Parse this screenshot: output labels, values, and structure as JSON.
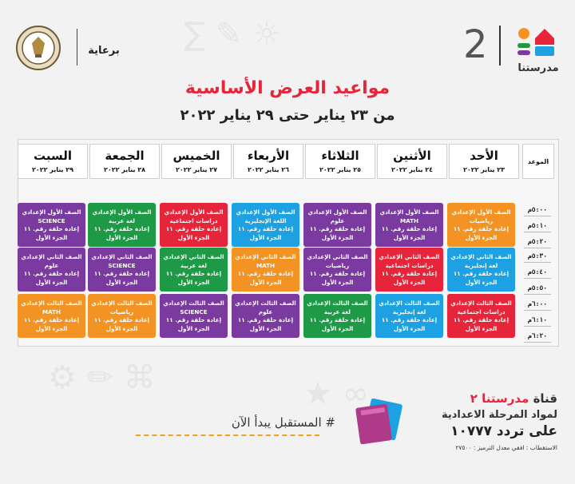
{
  "sponsor_label": "برعاية",
  "brand": {
    "number": "2",
    "name": "مدرستنا"
  },
  "title": "مواعيد العرض الأساسية",
  "subtitle": "من ٢٣ يناير حتى ٢٩ يناير ٢٠٢٢",
  "time_header": "الموعد",
  "days": [
    {
      "name": "الأحد",
      "date": "٢٣ يناير ٢٠٢٢"
    },
    {
      "name": "الأثنين",
      "date": "٢٤ يناير ٢٠٢٢"
    },
    {
      "name": "الثلاثاء",
      "date": "٢٥ يناير ٢٠٢٢"
    },
    {
      "name": "الأربعاء",
      "date": "٢٦ يناير ٢٠٢٢"
    },
    {
      "name": "الخميس",
      "date": "٢٧ يناير ٢٠٢٢"
    },
    {
      "name": "الجمعة",
      "date": "٢٨ يناير ٢٠٢٢"
    },
    {
      "name": "السبت",
      "date": "٢٩ يناير ٢٠٢٢"
    }
  ],
  "times": [
    "٥:٠٠م",
    "٥:١٠م",
    "٥:٢٠م",
    "٥:٣٠م",
    "٥:٤٠م",
    "٥:٥٠م",
    "٦:٠٠م",
    "٦:١٠م",
    "٦:٢٠م"
  ],
  "colors": {
    "orange": "#f39324",
    "purple": "#7a3aa0",
    "blue": "#1da1e2",
    "red": "#e6253b",
    "green": "#1e9a46"
  },
  "rows": [
    [
      {
        "grade": "الصف الأول الإعدادي",
        "subject": "رياضيات",
        "episode": "إعادة حلقة رقم. ١١",
        "part": "الجزء الأول",
        "color": "#f39324"
      },
      {
        "grade": "الصف الأول الإعدادي",
        "subject": "MATH",
        "episode": "إعادة حلقة رقم. ١١",
        "part": "الجزء الأول",
        "color": "#7a3aa0"
      },
      {
        "grade": "الصف الأول الإعدادي",
        "subject": "علوم",
        "episode": "إعادة حلقة رقم. ١١",
        "part": "الجزء الأول",
        "color": "#7a3aa0"
      },
      {
        "grade": "الصف الأول الإعدادي",
        "subject": "اللغة الإنجليزية",
        "episode": "إعادة حلقة رقم. ١١",
        "part": "الجزء الأول",
        "color": "#1da1e2"
      },
      {
        "grade": "الصف الأول الإعدادي",
        "subject": "دراسات اجتماعية",
        "episode": "إعادة حلقة رقم. ١١",
        "part": "الجزء الأول",
        "color": "#e6253b"
      },
      {
        "grade": "الصف الأول الإعدادي",
        "subject": "لغة عربية",
        "episode": "إعادة حلقة رقم. ١١",
        "part": "الجزء الأول",
        "color": "#1e9a46"
      },
      {
        "grade": "الصف الأول الإعدادي",
        "subject": "SCIENCE",
        "episode": "إعادة حلقة رقم. ١١",
        "part": "الجزء الأول",
        "color": "#7a3aa0"
      }
    ],
    [
      {
        "grade": "الصف الثاني الإعدادي",
        "subject": "لغة إنجليزية",
        "episode": "إعادة حلقة رقم. ١١",
        "part": "الجزء الأول",
        "color": "#1da1e2"
      },
      {
        "grade": "الصف الثاني الإعدادي",
        "subject": "دراسات اجتماعية",
        "episode": "إعادة حلقة رقم. ١١",
        "part": "الجزء الأول",
        "color": "#e6253b"
      },
      {
        "grade": "الصف الثاني الإعدادي",
        "subject": "رياضيات",
        "episode": "إعادة حلقة رقم. ١١",
        "part": "الجزء الأول",
        "color": "#7a3aa0"
      },
      {
        "grade": "الصف الثاني الإعدادي",
        "subject": "MATH",
        "episode": "إعادة حلقة رقم. ١١",
        "part": "الجزء الأول",
        "color": "#f39324"
      },
      {
        "grade": "الصف الثاني الإعدادي",
        "subject": "لغة عربية",
        "episode": "إعادة حلقة رقم. ١١",
        "part": "الجزء الأول",
        "color": "#1e9a46"
      },
      {
        "grade": "الصف الثاني الإعدادي",
        "subject": "SCIENCE",
        "episode": "إعادة حلقة رقم. ١١",
        "part": "الجزء الأول",
        "color": "#7a3aa0"
      },
      {
        "grade": "الصف الثاني الإعدادي",
        "subject": "علوم",
        "episode": "إعادة حلقة رقم. ١١",
        "part": "الجزء الأول",
        "color": "#7a3aa0"
      }
    ],
    [
      {
        "grade": "الصف الثالث الإعدادي",
        "subject": "دراسات اجتماعية",
        "episode": "إعادة حلقة رقم. ١١",
        "part": "الجزء الأول",
        "color": "#e6253b"
      },
      {
        "grade": "الصف الثالث الإعدادي",
        "subject": "لغة إنجليزية",
        "episode": "إعادة حلقة رقم. ١١",
        "part": "الجزء الأول",
        "color": "#1da1e2"
      },
      {
        "grade": "الصف الثالث الإعدادي",
        "subject": "لغة عربية",
        "episode": "إعادة حلقة رقم. ١١",
        "part": "الجزء الأول",
        "color": "#1e9a46"
      },
      {
        "grade": "الصف الثالث الإعدادي",
        "subject": "علوم",
        "episode": "إعادة حلقة رقم. ١١",
        "part": "الجزء الأول",
        "color": "#7a3aa0"
      },
      {
        "grade": "الصف الثالث الإعدادي",
        "subject": "SCIENCE",
        "episode": "إعادة حلقة رقم. ١١",
        "part": "الجزء الأول",
        "color": "#7a3aa0"
      },
      {
        "grade": "الصف الثالث الإعدادي",
        "subject": "رياضيات",
        "episode": "إعادة حلقة رقم. ١١",
        "part": "الجزء الأول",
        "color": "#f39324"
      },
      {
        "grade": "الصف الثالث الإعدادي",
        "subject": "MATH",
        "episode": "إعادة حلقة رقم. ١١",
        "part": "الجزء الأول",
        "color": "#f39324"
      }
    ]
  ],
  "footer": {
    "slogan": "# المستقبل يبدأ الآن",
    "channel_label": "قناة",
    "channel_name": "مدرستنا ٢",
    "line2": "لمواد المرحلة الاعدادية",
    "frequency": "على تردد ١٠٧٧٧",
    "reception": "الاستقطاب : افقي معدل الترميز : ٢٧٥٠٠"
  }
}
